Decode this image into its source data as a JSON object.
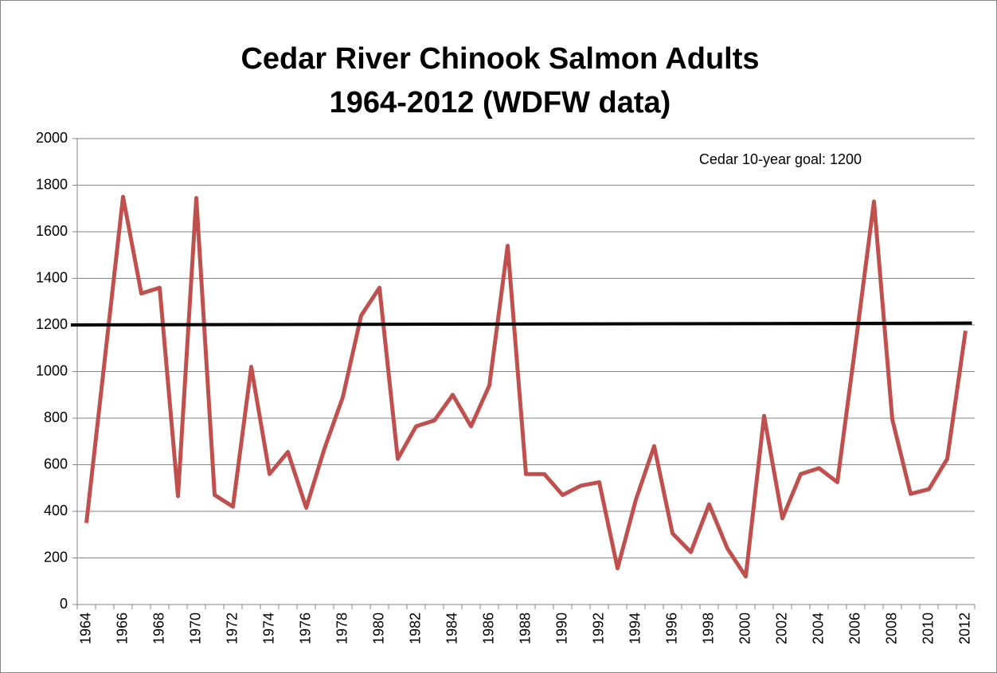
{
  "chart_data": {
    "type": "line",
    "title": [
      "Cedar River Chinook Salmon Adults",
      "1964-2012 (WDFW data)"
    ],
    "annotation": "Cedar 10-year goal: 1200",
    "categories": [
      "1964",
      null,
      "1966",
      null,
      "1968",
      null,
      "1970",
      null,
      "1972",
      null,
      "1974",
      null,
      "1976",
      null,
      "1978",
      null,
      "1980",
      null,
      "1982",
      null,
      "1984",
      null,
      "1986",
      null,
      "1988",
      null,
      "1990",
      null,
      "1992",
      null,
      "1994",
      null,
      "1996",
      null,
      "1998",
      null,
      "2000",
      null,
      "2002",
      null,
      "2004",
      null,
      "2006",
      null,
      "2008",
      null,
      "2010",
      null,
      "2012"
    ],
    "series": [
      {
        "color": "#c0504d",
        "values": [
          350,
          1050,
          1750,
          1335,
          1360,
          465,
          1745,
          470,
          420,
          1020,
          560,
          655,
          415,
          670,
          890,
          1240,
          1360,
          625,
          765,
          790,
          900,
          765,
          940,
          1540,
          560,
          560,
          470,
          510,
          525,
          155,
          450,
          680,
          305,
          225,
          430,
          240,
          120,
          810,
          370,
          560,
          585,
          525,
          1120,
          1730,
          795,
          475,
          495,
          625,
          1175
        ]
      }
    ],
    "reference_lines": [
      {
        "values": [
          1200,
          1208
        ],
        "color": "#000000"
      }
    ],
    "ylim": [
      0,
      2000
    ],
    "yticks": [
      0,
      200,
      400,
      600,
      800,
      1000,
      1200,
      1400,
      1600,
      1800,
      2000
    ],
    "grid": true
  }
}
